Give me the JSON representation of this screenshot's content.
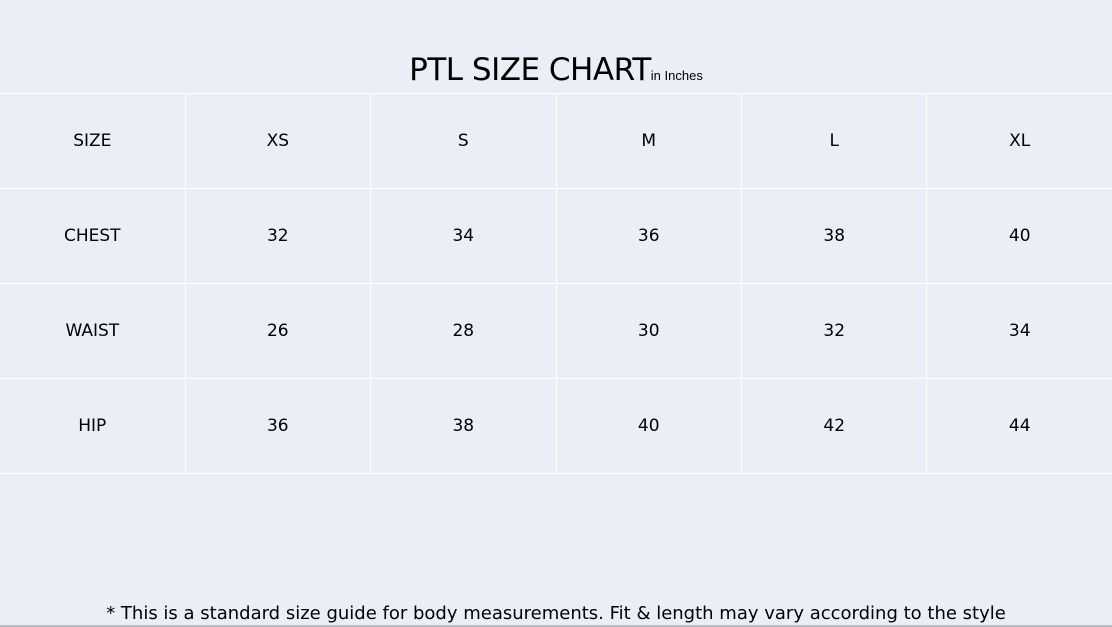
{
  "title": {
    "main": "PTL SIZE CHART",
    "unit": "in Inches"
  },
  "table": {
    "header": [
      "SIZE",
      "XS",
      "S",
      "M",
      "L",
      "XL"
    ],
    "rows": [
      [
        "CHEST",
        "32",
        "34",
        "36",
        "38",
        "40"
      ],
      [
        "WAIST",
        "26",
        "28",
        "30",
        "32",
        "34"
      ],
      [
        "HIP",
        "36",
        "38",
        "40",
        "42",
        "44"
      ]
    ]
  },
  "footer": "* This is a standard size guide for body measurements. Fit & length may vary according to the style",
  "colors": {
    "background": "#e9eef7",
    "gridlines": "#ffffff"
  }
}
